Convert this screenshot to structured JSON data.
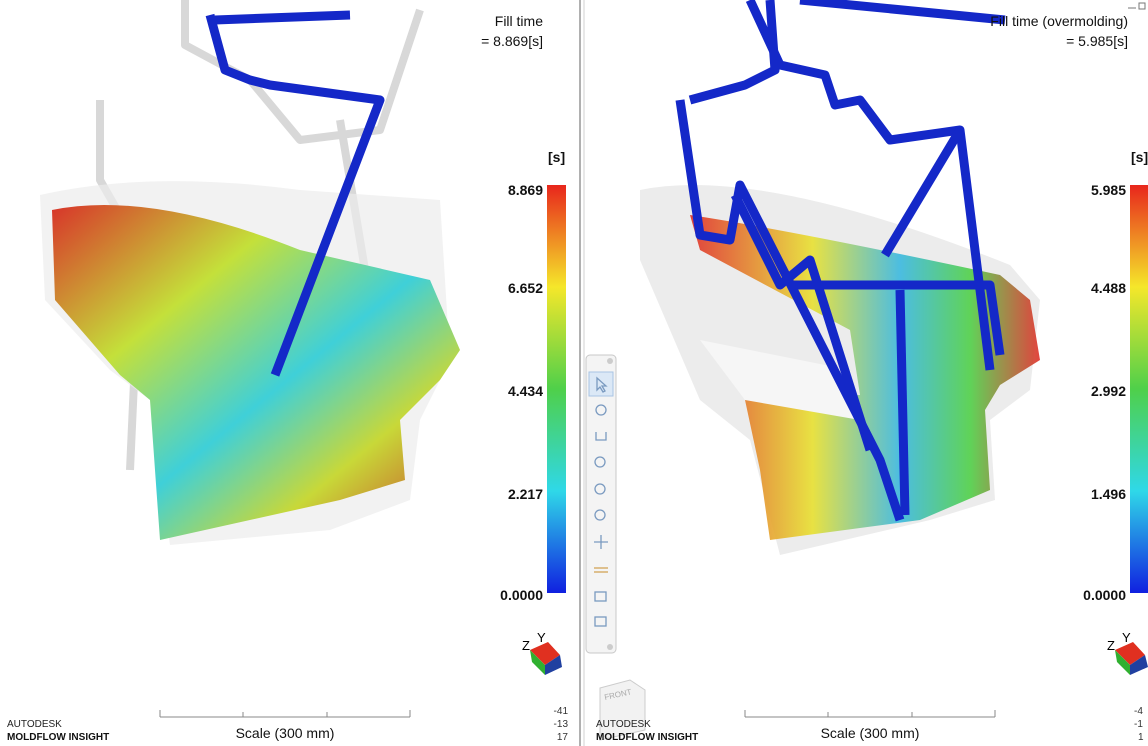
{
  "panels": [
    {
      "title": "Fill time",
      "value": "= 8.869[s]",
      "unit": "[s]",
      "legend_ticks": [
        "8.869",
        "6.652",
        "4.434",
        "2.217",
        "0.0000"
      ],
      "axis_labels": [
        "Z",
        "Y"
      ],
      "brand": "AUTODESK",
      "product": "MOLDFLOW INSIGHT",
      "scale": "Scale (300 mm)",
      "coords": [
        "-41",
        "-13",
        "17"
      ]
    },
    {
      "title": "Fill time (overmolding)",
      "value": "= 5.985[s]",
      "unit": "[s]",
      "legend_ticks": [
        "5.985",
        "4.488",
        "2.992",
        "1.496",
        "0.0000"
      ],
      "axis_labels": [
        "Z",
        "Y"
      ],
      "brand": "AUTODESK",
      "product": "MOLDFLOW INSIGHT",
      "scale": "Scale (300 mm)",
      "coords": [
        "-4",
        "-1",
        "1"
      ],
      "view_cube": "FRONT"
    }
  ]
}
